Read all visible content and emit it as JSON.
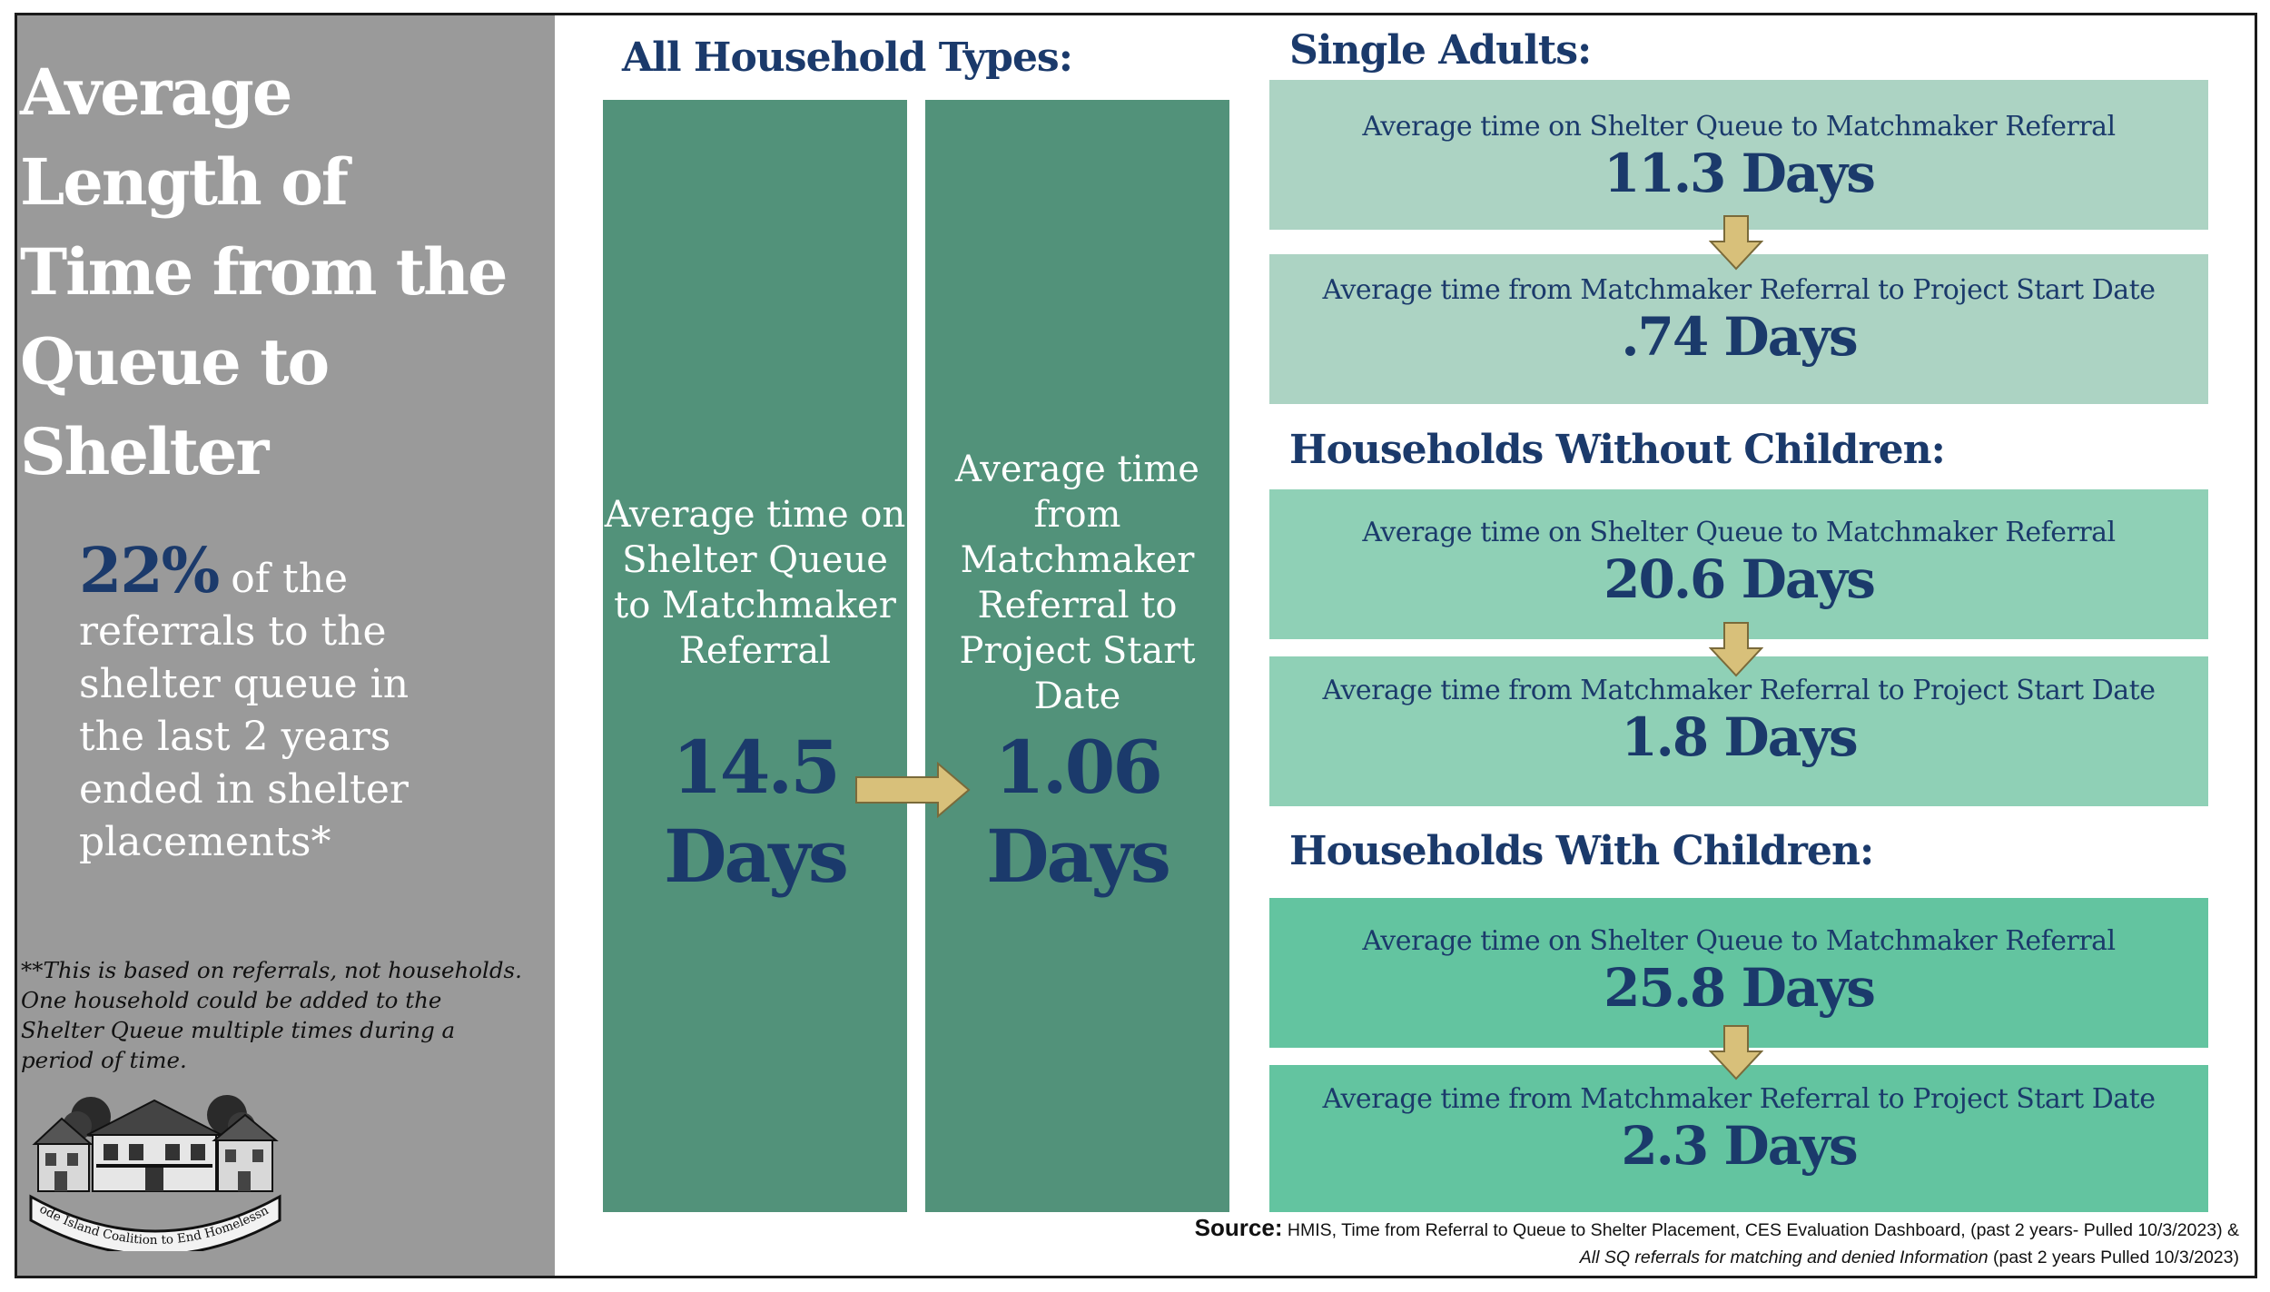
{
  "title": "Average Length of Time from the Queue to Shelter",
  "stat": {
    "percent": "22%",
    "text": "of the referrals to the shelter queue in the last 2 years ended in shelter placements*"
  },
  "footnote": "**This is based on referrals, not households. One household could be added to the Shelter Queue multiple times during a period of time.",
  "logo": {
    "text": "Rhode Island Coalition to End Homelessness"
  },
  "all_households": {
    "heading": "All Household Types:",
    "queue_label": "Average time on Shelter Queue to Matchmaker Referral",
    "queue_value": "14.5",
    "queue_unit": "Days",
    "referral_label": "Average time from Matchmaker Referral to Project Start Date",
    "referral_value": "1.06",
    "referral_unit": "Days"
  },
  "groups": [
    {
      "heading": "Single Adults:",
      "queue_label": "Average time on Shelter Queue to Matchmaker Referral",
      "queue_value": "11.3 Days",
      "referral_label": "Average time from Matchmaker Referral to Project Start Date",
      "referral_value": ".74 Days",
      "color": "#acd3c3"
    },
    {
      "heading": "Households Without Children:",
      "queue_label": "Average time on Shelter Queue to Matchmaker Referral",
      "queue_value": "20.6 Days",
      "referral_label": "Average time from Matchmaker Referral to Project Start Date",
      "referral_value": "1.8 Days",
      "color": "#8fd0b6"
    },
    {
      "heading": "Households With Children:",
      "queue_label": "Average time on Shelter Queue to Matchmaker Referral",
      "queue_value": "25.8 Days",
      "referral_label": "Average time from Matchmaker Referral to Project Start Date",
      "referral_value": "2.3 Days",
      "color": "#63c4a0"
    }
  ],
  "source": {
    "key": "Source:",
    "line1": "HMIS, Time from Referral to Queue to Shelter Placement, CES Evaluation Dashboard, (past 2 years- Pulled 10/3/2023) &",
    "line2_italic": "All SQ referrals for matching and denied Information",
    "line2_rest": "(past 2 years Pulled 10/3/2023)"
  },
  "colors": {
    "panel_grey": "#9a9a9a",
    "column_green": "#52927a",
    "navy": "#1b3a6b",
    "arrow_tan": "#d8c07a"
  },
  "icons": [
    "down-arrow-icon",
    "right-arrow-icon",
    "houses-logo-icon"
  ]
}
